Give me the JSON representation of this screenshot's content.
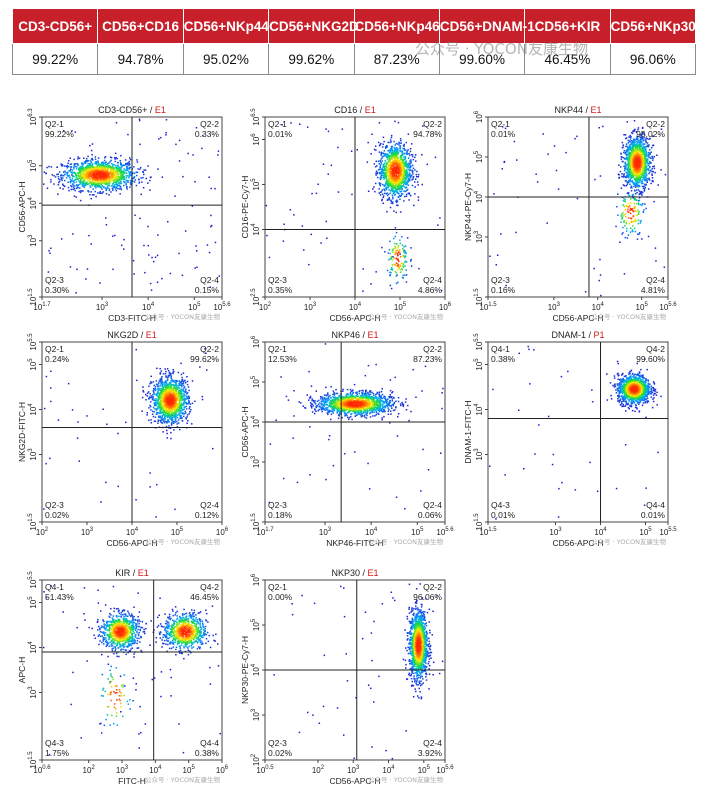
{
  "summary_table": {
    "headers": [
      "CD3-CD56+",
      "CD56+CD16",
      "CD56+NKp44",
      "CD56+NKG2D",
      "CD56+NKp46",
      "CD56+DNAM-1",
      "CD56+KIR",
      "CD56+NKp30"
    ],
    "values": [
      "99.22%",
      "94.78%",
      "95.02%",
      "99.62%",
      "87.23%",
      "99.60%",
      "46.45%",
      "96.06%"
    ]
  },
  "watermark": "公众号 · YOCON友康生物",
  "plot_watermark": "公众号 · YOCON友康生物",
  "colors": {
    "header_bg": "#c8202a",
    "gate_suffix": "#d01818",
    "density_low": "#2b2bd6",
    "density_high": "#ff3a00"
  },
  "chart_data": [
    {
      "type": "scatter",
      "title_main": "CD3-CD56+",
      "title_sep": " / ",
      "title_gate": "E1",
      "xlabel": "CD3-FITC-H",
      "ylabel": "CD56-APC-H",
      "xlog": true,
      "ylog": true,
      "xlim": [
        1.7,
        5.6
      ],
      "ylim": [
        1.5,
        6.3
      ],
      "xticks": [
        {
          "v": 1.7,
          "base": "10",
          "exp": "1.7"
        },
        {
          "v": 3,
          "base": "10",
          "exp": "3"
        },
        {
          "v": 4,
          "base": "10",
          "exp": "4"
        },
        {
          "v": 5,
          "base": "10",
          "exp": "5"
        },
        {
          "v": 5.6,
          "base": "10",
          "exp": "5.6"
        }
      ],
      "yticks": [
        {
          "v": 1.5,
          "base": "10",
          "exp": "1.5"
        },
        {
          "v": 3,
          "base": "10",
          "exp": "3"
        },
        {
          "v": 4,
          "base": "10",
          "exp": "4"
        },
        {
          "v": 5,
          "base": "10",
          "exp": "5"
        },
        {
          "v": 6.3,
          "base": "10",
          "exp": "6.3"
        }
      ],
      "gate": {
        "x": 3.65,
        "y": 3.95
      },
      "quadrants": {
        "ul": {
          "label": "Q2-1",
          "value": "99.22%"
        },
        "ur": {
          "label": "Q2-2",
          "value": "0.33%"
        },
        "ll": {
          "label": "Q2-3",
          "value": "0.30%"
        },
        "lr": {
          "label": "Q2-4",
          "value": "0.15%"
        }
      },
      "populations": [
        {
          "cx": 2.95,
          "cy": 4.75,
          "sx": 0.4,
          "sy": 0.2,
          "n": 1300
        }
      ],
      "sparse": 110
    },
    {
      "type": "scatter",
      "title_main": "CD16",
      "title_sep": " / ",
      "title_gate": "E1",
      "xlabel": "CD56-APC-H",
      "ylabel": "CD16-PE-Cy7-H",
      "xlog": true,
      "ylog": true,
      "xlim": [
        2,
        6
      ],
      "ylim": [
        2.5,
        6.5
      ],
      "xticks": [
        {
          "v": 2,
          "base": "10",
          "exp": "2"
        },
        {
          "v": 3,
          "base": "10",
          "exp": "3"
        },
        {
          "v": 4,
          "base": "10",
          "exp": "4"
        },
        {
          "v": 5,
          "base": "10",
          "exp": "5"
        },
        {
          "v": 6,
          "base": "10",
          "exp": "6"
        }
      ],
      "yticks": [
        {
          "v": 2.5,
          "base": "10",
          "exp": "2.5"
        },
        {
          "v": 4,
          "base": "10",
          "exp": "4"
        },
        {
          "v": 5,
          "base": "10",
          "exp": "5"
        },
        {
          "v": 6,
          "base": "10",
          "exp": "6"
        },
        {
          "v": 6.5,
          "base": "10",
          "exp": "6.5"
        }
      ],
      "gate": {
        "x": 4.0,
        "y": 4.0
      },
      "quadrants": {
        "ul": {
          "label": "Q2-1",
          "value": "0.01%"
        },
        "ur": {
          "label": "Q2-2",
          "value": "94.78%"
        },
        "ll": {
          "label": "Q2-3",
          "value": "0.35%"
        },
        "lr": {
          "label": "Q2-4",
          "value": "4.86%"
        }
      },
      "populations": [
        {
          "cx": 4.9,
          "cy": 5.3,
          "sx": 0.18,
          "sy": 0.3,
          "n": 1200
        },
        {
          "cx": 4.95,
          "cy": 3.35,
          "sx": 0.12,
          "sy": 0.28,
          "n": 120
        }
      ],
      "sparse": 60
    },
    {
      "type": "scatter",
      "title_main": "NKP44",
      "title_sep": " / ",
      "title_gate": "E1",
      "xlabel": "CD56-APC-H",
      "ylabel": "NKP44-PE-Cy7-H",
      "xlog": true,
      "ylog": true,
      "xlim": [
        1.5,
        5.6
      ],
      "ylim": [
        1.5,
        6
      ],
      "xticks": [
        {
          "v": 1.5,
          "base": "10",
          "exp": "1.5"
        },
        {
          "v": 3,
          "base": "10",
          "exp": "3"
        },
        {
          "v": 4,
          "base": "10",
          "exp": "4"
        },
        {
          "v": 5,
          "base": "10",
          "exp": "5"
        },
        {
          "v": 5.6,
          "base": "10",
          "exp": "5.6"
        }
      ],
      "yticks": [
        {
          "v": 1.5,
          "base": "10",
          "exp": "1.5"
        },
        {
          "v": 3,
          "base": "10",
          "exp": "3"
        },
        {
          "v": 4,
          "base": "10",
          "exp": "4"
        },
        {
          "v": 5,
          "base": "10",
          "exp": "5"
        },
        {
          "v": 6,
          "base": "10",
          "exp": "6"
        }
      ],
      "gate": {
        "x": 3.8,
        "y": 4.0
      },
      "quadrants": {
        "ul": {
          "label": "Q2-1",
          "value": "0.01%"
        },
        "ur": {
          "label": "Q2-2",
          "value": "95.02%"
        },
        "ll": {
          "label": "Q2-3",
          "value": "0.16%"
        },
        "lr": {
          "label": "Q2-4",
          "value": "4.81%"
        }
      },
      "populations": [
        {
          "cx": 4.9,
          "cy": 4.85,
          "sx": 0.15,
          "sy": 0.32,
          "n": 1250
        },
        {
          "cx": 4.75,
          "cy": 3.6,
          "sx": 0.16,
          "sy": 0.3,
          "n": 130
        }
      ],
      "sparse": 50
    },
    {
      "type": "scatter",
      "title_main": "NKG2D",
      "title_sep": " / ",
      "title_gate": "E1",
      "xlabel": "CD56-APC-H",
      "ylabel": "NKG2D-FITC-H",
      "xlog": true,
      "ylog": true,
      "xlim": [
        2,
        6
      ],
      "ylim": [
        1.5,
        5.5
      ],
      "xticks": [
        {
          "v": 2,
          "base": "10",
          "exp": "2"
        },
        {
          "v": 3,
          "base": "10",
          "exp": "3"
        },
        {
          "v": 4,
          "base": "10",
          "exp": "4"
        },
        {
          "v": 5,
          "base": "10",
          "exp": "5"
        },
        {
          "v": 6,
          "base": "10",
          "exp": "6"
        }
      ],
      "yticks": [
        {
          "v": 1.5,
          "base": "10",
          "exp": "1.5"
        },
        {
          "v": 3,
          "base": "10",
          "exp": "3"
        },
        {
          "v": 4,
          "base": "10",
          "exp": "4"
        },
        {
          "v": 5,
          "base": "10",
          "exp": "5"
        },
        {
          "v": 5.5,
          "base": "10",
          "exp": "5.5"
        }
      ],
      "gate": {
        "x": 4.0,
        "y": 3.6
      },
      "quadrants": {
        "ul": {
          "label": "Q2-1",
          "value": "0.24%"
        },
        "ur": {
          "label": "Q2-2",
          "value": "99.62%"
        },
        "ll": {
          "label": "Q2-3",
          "value": "0.02%"
        },
        "lr": {
          "label": "Q2-4",
          "value": "0.12%"
        }
      },
      "populations": [
        {
          "cx": 4.85,
          "cy": 4.2,
          "sx": 0.2,
          "sy": 0.25,
          "n": 1300
        }
      ],
      "sparse": 40
    },
    {
      "type": "scatter",
      "title_main": "NKP46",
      "title_sep": " / ",
      "title_gate": "E1",
      "xlabel": "NKP46-FITC-H",
      "ylabel": "CD56-APC-H",
      "xlog": true,
      "ylog": true,
      "xlim": [
        1.7,
        5.6
      ],
      "ylim": [
        1.5,
        6
      ],
      "xticks": [
        {
          "v": 1.7,
          "base": "10",
          "exp": "1.7"
        },
        {
          "v": 3,
          "base": "10",
          "exp": "3"
        },
        {
          "v": 4,
          "base": "10",
          "exp": "4"
        },
        {
          "v": 5,
          "base": "10",
          "exp": "5"
        },
        {
          "v": 5.6,
          "base": "10",
          "exp": "5.6"
        }
      ],
      "yticks": [
        {
          "v": 1.5,
          "base": "10",
          "exp": "1.5"
        },
        {
          "v": 3,
          "base": "10",
          "exp": "3"
        },
        {
          "v": 4,
          "base": "10",
          "exp": "4"
        },
        {
          "v": 5,
          "base": "10",
          "exp": "5"
        },
        {
          "v": 6,
          "base": "10",
          "exp": "6"
        }
      ],
      "gate": {
        "x": 3.35,
        "y": 4.0
      },
      "quadrants": {
        "ul": {
          "label": "Q2-1",
          "value": "12.53%"
        },
        "ur": {
          "label": "Q2-2",
          "value": "87.23%"
        },
        "ll": {
          "label": "Q2-3",
          "value": "0.18%"
        },
        "lr": {
          "label": "Q2-4",
          "value": "0.06%"
        }
      },
      "populations": [
        {
          "cx": 3.65,
          "cy": 4.45,
          "sx": 0.4,
          "sy": 0.14,
          "n": 1400
        }
      ],
      "sparse": 50
    },
    {
      "type": "scatter",
      "title_main": "DNAM-1",
      "title_sep": " / ",
      "title_gate": "P1",
      "xlabel": "CD56-APC-H",
      "ylabel": "DNAM-1-FITC-H",
      "xlog": true,
      "ylog": true,
      "xlim": [
        1.5,
        5.5
      ],
      "ylim": [
        1.5,
        5.5
      ],
      "xticks": [
        {
          "v": 1.5,
          "base": "10",
          "exp": "1.5"
        },
        {
          "v": 3,
          "base": "10",
          "exp": "3"
        },
        {
          "v": 4,
          "base": "10",
          "exp": "4"
        },
        {
          "v": 5,
          "base": "10",
          "exp": "5"
        },
        {
          "v": 5.5,
          "base": "10",
          "exp": "5.5"
        }
      ],
      "yticks": [
        {
          "v": 1.5,
          "base": "10",
          "exp": "1.5"
        },
        {
          "v": 3,
          "base": "10",
          "exp": "3"
        },
        {
          "v": 4,
          "base": "10",
          "exp": "4"
        },
        {
          "v": 5,
          "base": "10",
          "exp": "5"
        },
        {
          "v": 5.5,
          "base": "10",
          "exp": "5.5"
        }
      ],
      "gate": {
        "x": 4.0,
        "y": 3.8
      },
      "quadrants": {
        "ul": {
          "label": "Q4-1",
          "value": "0.38%"
        },
        "ur": {
          "label": "Q4-2",
          "value": "99.60%"
        },
        "ll": {
          "label": "Q4-3",
          "value": "0.01%"
        },
        "lr": {
          "label": "Q4-4",
          "value": "0.01%"
        }
      },
      "populations": [
        {
          "cx": 4.75,
          "cy": 4.45,
          "sx": 0.18,
          "sy": 0.16,
          "n": 1200
        }
      ],
      "sparse": 35
    },
    {
      "type": "scatter",
      "title_main": "KIR",
      "title_sep": " / ",
      "title_gate": "E1",
      "xlabel": "FITC-H",
      "ylabel": "APC-H",
      "xlog": true,
      "ylog": true,
      "xlim": [
        0.6,
        6
      ],
      "ylim": [
        1.5,
        5.5
      ],
      "xticks": [
        {
          "v": 0.6,
          "base": "10",
          "exp": "0.6"
        },
        {
          "v": 2,
          "base": "10",
          "exp": "2"
        },
        {
          "v": 3,
          "base": "10",
          "exp": "3"
        },
        {
          "v": 4,
          "base": "10",
          "exp": "4"
        },
        {
          "v": 5,
          "base": "10",
          "exp": "5"
        },
        {
          "v": 6,
          "base": "10",
          "exp": "6"
        }
      ],
      "yticks": [
        {
          "v": 1.5,
          "base": "10",
          "exp": "1.5"
        },
        {
          "v": 3,
          "base": "10",
          "exp": "3"
        },
        {
          "v": 4,
          "base": "10",
          "exp": "4"
        },
        {
          "v": 5,
          "base": "10",
          "exp": "5"
        },
        {
          "v": 5.5,
          "base": "10",
          "exp": "5.5"
        }
      ],
      "gate": {
        "x": 3.95,
        "y": 3.9
      },
      "quadrants": {
        "ul": {
          "label": "Q4-1",
          "value": "51.43%"
        },
        "ur": {
          "label": "Q4-2",
          "value": "46.45%"
        },
        "ll": {
          "label": "Q4-3",
          "value": "1.75%"
        },
        "lr": {
          "label": "Q4-4",
          "value": "0.38%"
        }
      },
      "populations": [
        {
          "cx": 2.95,
          "cy": 4.35,
          "sx": 0.28,
          "sy": 0.2,
          "n": 800
        },
        {
          "cx": 4.9,
          "cy": 4.35,
          "sx": 0.32,
          "sy": 0.2,
          "n": 750
        },
        {
          "cx": 2.8,
          "cy": 2.9,
          "sx": 0.25,
          "sy": 0.38,
          "n": 70
        }
      ],
      "sparse": 60
    },
    {
      "type": "scatter",
      "title_main": "NKP30",
      "title_sep": " / ",
      "title_gate": "E1",
      "xlabel": "CD56-APC-H",
      "ylabel": "NKP30-PE-Cy7-H",
      "xlog": true,
      "ylog": true,
      "xlim": [
        0.5,
        5.6
      ],
      "ylim": [
        2,
        6
      ],
      "xticks": [
        {
          "v": 0.5,
          "base": "10",
          "exp": "0.5"
        },
        {
          "v": 2,
          "base": "10",
          "exp": "2"
        },
        {
          "v": 3,
          "base": "10",
          "exp": "3"
        },
        {
          "v": 4,
          "base": "10",
          "exp": "4"
        },
        {
          "v": 5,
          "base": "10",
          "exp": "5"
        },
        {
          "v": 5.6,
          "base": "10",
          "exp": "5.6"
        }
      ],
      "yticks": [
        {
          "v": 2,
          "base": "10",
          "exp": "2"
        },
        {
          "v": 3,
          "base": "10",
          "exp": "3"
        },
        {
          "v": 4,
          "base": "10",
          "exp": "4"
        },
        {
          "v": 5,
          "base": "10",
          "exp": "5"
        },
        {
          "v": 6,
          "base": "10",
          "exp": "6"
        }
      ],
      "gate": {
        "x": 3.1,
        "y": 4.0
      },
      "quadrants": {
        "ul": {
          "label": "Q2-1",
          "value": "0.00%"
        },
        "ur": {
          "label": "Q2-2",
          "value": "96.06%"
        },
        "ll": {
          "label": "Q2-3",
          "value": "0.02%"
        },
        "lr": {
          "label": "Q2-4",
          "value": "3.92%"
        }
      },
      "populations": [
        {
          "cx": 4.85,
          "cy": 4.55,
          "sx": 0.13,
          "sy": 0.38,
          "n": 1300
        }
      ],
      "sparse": 45
    }
  ]
}
